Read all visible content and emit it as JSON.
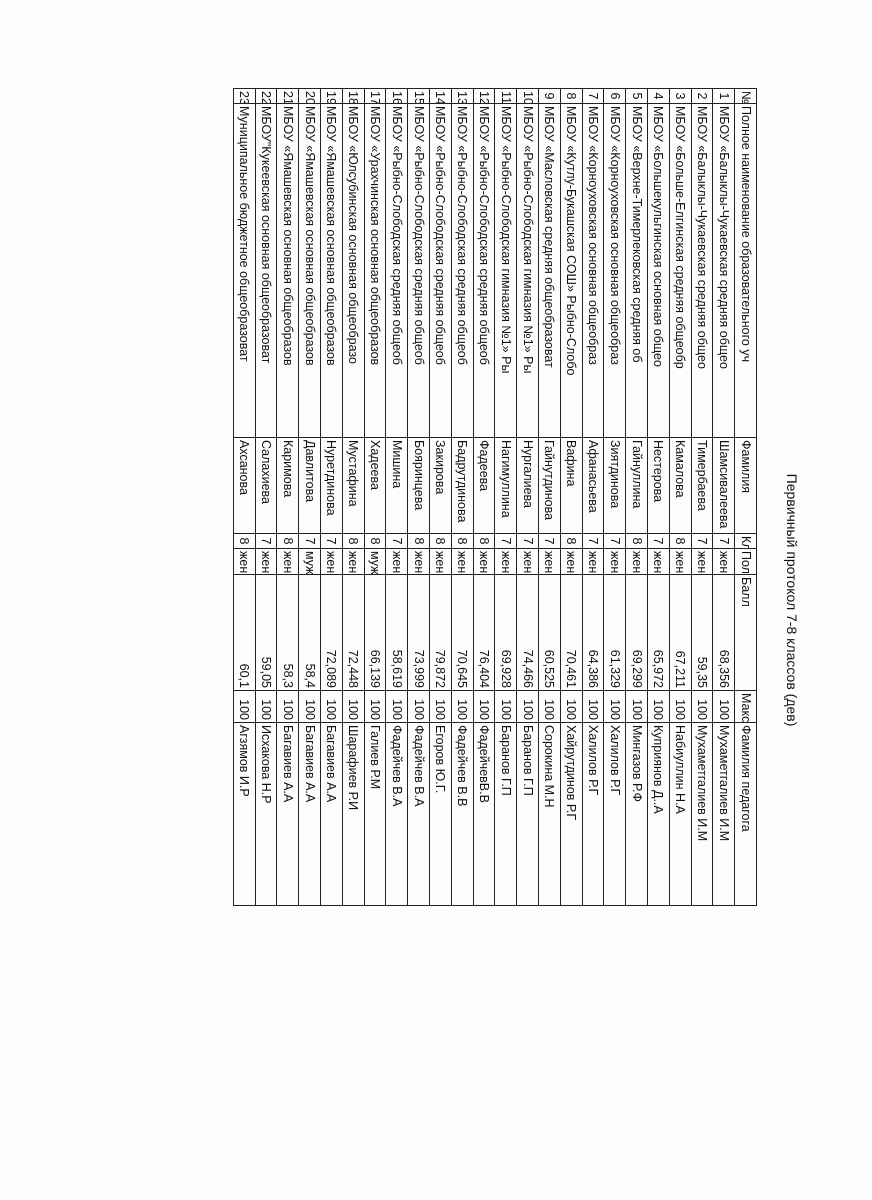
{
  "title": "Первичный протокол 7-8 классов (дев)",
  "table": {
    "headers": [
      "№",
      "Полное наименование образовательного уч",
      "Фамилия",
      "Кла",
      "Пол",
      "Балл",
      "Макси",
      "Фамилия педагога"
    ],
    "rows": [
      [
        "1",
        "МБОУ «Балыклы-Чукаевская средняя общео",
        "Шамсивалеева",
        "7",
        "жен",
        "68,356",
        "100",
        "Мухаметгалиев И.М"
      ],
      [
        "2",
        "МБОУ «Балыклы-Чукаевская средняя общео",
        "Тимербаева",
        "7",
        "жен",
        "59,35",
        "100",
        "Мухаметгалиев И.М"
      ],
      [
        "3",
        "МБОУ «Больше-Елгинская средняя общеобр",
        "Камалова",
        "8",
        "жен",
        "67,211",
        "100",
        "Набиуллин Н.А"
      ],
      [
        "4",
        "МБОУ «Большекульгинская основная общео",
        "Нестерова",
        "7",
        "жен",
        "65,972",
        "100",
        "Куприянов Д..А"
      ],
      [
        "5",
        "МБОУ «Верхне-Тимерлековская средняя об",
        "Гайнуллина",
        "8",
        "жен",
        "69,299",
        "100",
        "Мингазов Р.Ф"
      ],
      [
        "6",
        "МБОУ «Корноуховская основная общеобраз",
        "Зиятдинова",
        "7",
        "жен",
        "61,329",
        "100",
        "Халилов Р.Г"
      ],
      [
        "7",
        "МБОУ «Корноуховская основная общеобраз",
        "Афанасьева",
        "7",
        "жен",
        "64,386",
        "100",
        "Халилов Р.Г"
      ],
      [
        "8",
        "МБОУ «Кутлу-Букашская СОШ» Рыбно-Слобо",
        "Вафина",
        "8",
        "жен",
        "70,461",
        "100",
        "Хайрутдинов Р.Г"
      ],
      [
        "9",
        "МБОУ «Масловская средняя общеобразоват",
        "Гайнутдинова",
        "7",
        "жен",
        "60,525",
        "100",
        "Сорокина М.Н"
      ],
      [
        "10",
        "МБОУ «Рыбно-Слободская гимназия №1» Ры",
        "Нургалиева",
        "7",
        "жен",
        "74,466",
        "100",
        "Баранов Г.П"
      ],
      [
        "11",
        "МБОУ «Рыбно-Слободская гимназия №1» Ры",
        "Нагимуллина",
        "7",
        "жен",
        "69,928",
        "100",
        "Баранов Г.П"
      ],
      [
        "12",
        "МБОУ «Рыбно-Слободская средняя общеоб",
        "Фадеева",
        "8",
        "жен",
        "76,404",
        "100",
        "ФадейчевВ.В"
      ],
      [
        "13",
        "МБОУ «Рыбно-Слободская средняя общеоб",
        "Бадрутдинова",
        "8",
        "жен",
        "70,645",
        "100",
        "Фадейчев В.В"
      ],
      [
        "14",
        "МБОУ «Рыбно-Слободская средняя общеоб",
        "Закирова",
        "8",
        "жен",
        "79,872",
        "100",
        "Егоров Ю.Г."
      ],
      [
        "15",
        "МБОУ «Рыбно-Слободская средняя общеоб",
        "Бояринцева",
        "8",
        "жен",
        "73,999",
        "100",
        "Фадейчев В.А"
      ],
      [
        "16",
        "МБОУ «Рыбно-Слободская средняя общеоб",
        "Мишина",
        "7",
        "жен",
        "58,619",
        "100",
        "Фадейчев В.А"
      ],
      [
        "17",
        "МБОУ «Урахчинская основная общеобразов",
        "Хадеева",
        "8",
        "муж",
        "66,139",
        "100",
        "Галиев Р.М"
      ],
      [
        "18",
        "МБОУ «Юлсубинская основная общеобразо",
        "Мустафина",
        "8",
        "жен",
        "72,448",
        "100",
        "Шарафиев Р.И"
      ],
      [
        "19",
        "МБОУ «Ямашевская основная общеобразов",
        "Нуретдинова",
        "7",
        "жен",
        "72,089",
        "100",
        "Багавиев А.А"
      ],
      [
        "20",
        "МБОУ «Ямашевская основная общеобразов",
        "Давлитова",
        "7",
        "муж",
        "58,4",
        "100",
        "Багавиев А.А"
      ],
      [
        "21",
        "МБОУ «Ямашевская основная общеобразов",
        "Каримова",
        "8",
        "жен",
        "58,3",
        "100",
        "Багавиев А.А"
      ],
      [
        "22",
        "МБОУ\"Кукеевская основная общеобразоват",
        "Салахиева",
        "7",
        "жен",
        "59,05",
        "100",
        "Исхакова Н.Р"
      ],
      [
        "23",
        "Муниципальное бюджетное общеобразоват",
        "Ахсанова",
        "8",
        "жен",
        "60,1",
        "100",
        "Агзямов И.Р"
      ]
    ]
  }
}
